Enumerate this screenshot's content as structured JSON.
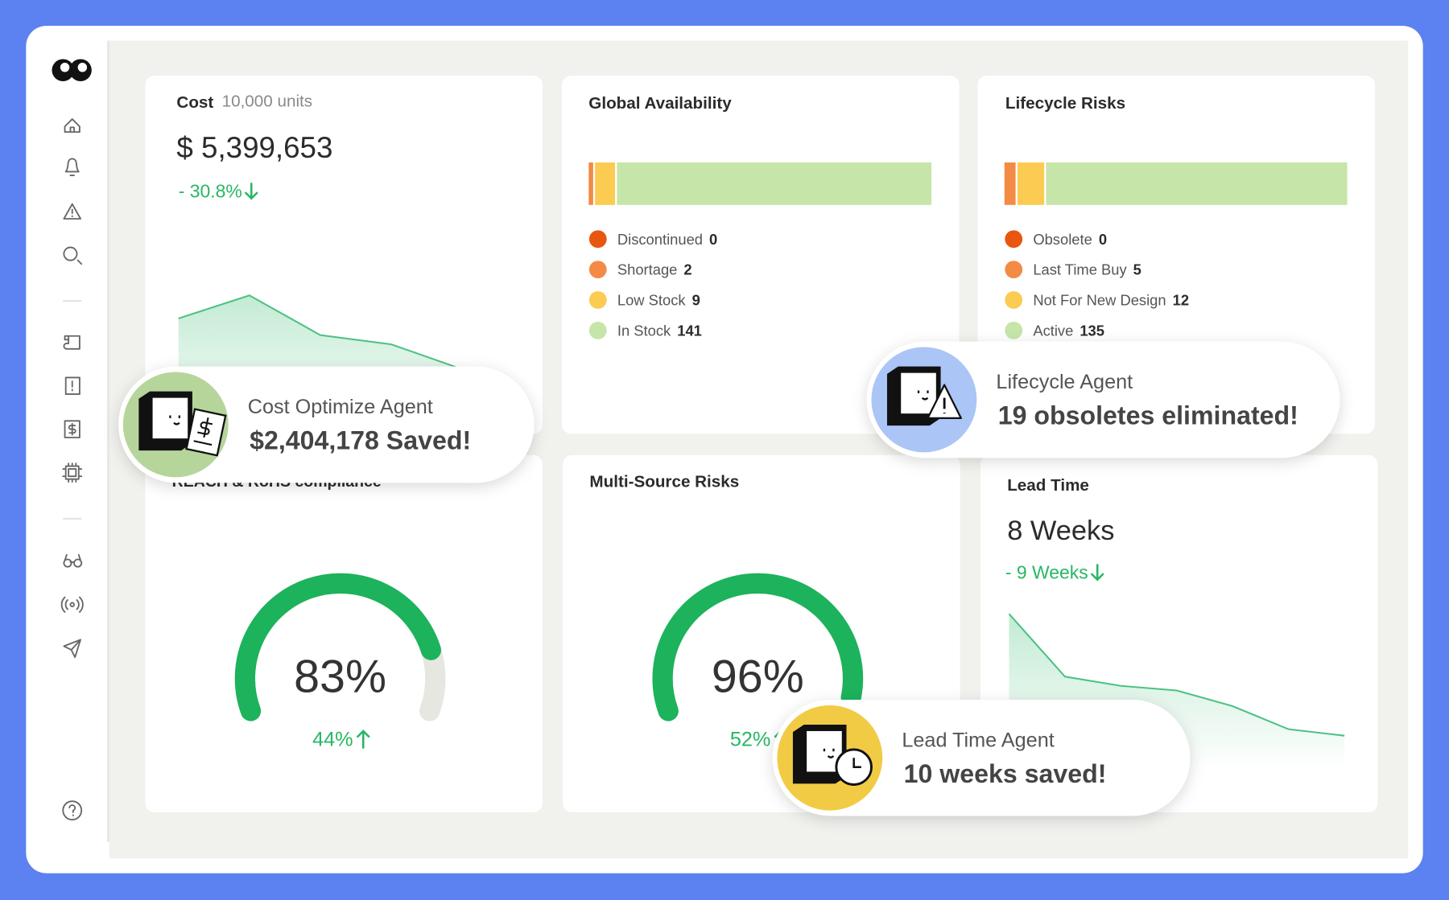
{
  "cards": {
    "cost": {
      "title": "Cost",
      "subtitle": "10,000 units",
      "value": "$ 5,399,653",
      "change": "- 30.8%",
      "trend": [
        12.5,
        15,
        10.7,
        9.7,
        7
      ]
    },
    "availability": {
      "title": "Global Availability",
      "segments": [
        {
          "name": "Discontinued",
          "value": 0,
          "color": "#e8560f"
        },
        {
          "name": "Shortage",
          "value": 2,
          "color": "#f38b45"
        },
        {
          "name": "Low Stock",
          "value": 9,
          "color": "#fbcb52"
        },
        {
          "name": "In Stock",
          "value": 141,
          "color": "#c6e5a8"
        }
      ]
    },
    "lifecycle": {
      "title": "Lifecycle Risks",
      "segments": [
        {
          "name": "Obsolete",
          "value": 0,
          "color": "#e8560f"
        },
        {
          "name": "Last Time Buy",
          "value": 5,
          "color": "#f38b45"
        },
        {
          "name": "Not For New Design",
          "value": 12,
          "color": "#fbcb52"
        },
        {
          "name": "Active",
          "value": 135,
          "color": "#c6e5a8"
        }
      ]
    },
    "compliance": {
      "title": "REACH & RoHS compliance",
      "value": 83,
      "value_label": "83%",
      "change": "44%",
      "ylim": [
        0,
        100
      ]
    },
    "multisource": {
      "title": "Multi-Source Risks",
      "value": 96,
      "value_label": "96%",
      "change": "52%",
      "ylim": [
        0,
        100
      ]
    },
    "leadtime": {
      "title": "Lead Time",
      "value": "8 Weeks",
      "change": "- 9 Weeks",
      "trend": [
        17,
        10.2,
        9.2,
        8.7,
        7,
        4.5,
        3.8
      ]
    }
  },
  "agents": [
    {
      "name": "Cost Optimize Agent",
      "message": "$2,404,178 Saved!",
      "color": "#b6d59b"
    },
    {
      "name": "Lifecycle Agent",
      "message": "19 obsoletes eliminated!",
      "color": "#aac5f6"
    },
    {
      "name": "Lead Time Agent",
      "message": "10 weeks saved!",
      "color": "#f2cb45"
    }
  ]
}
